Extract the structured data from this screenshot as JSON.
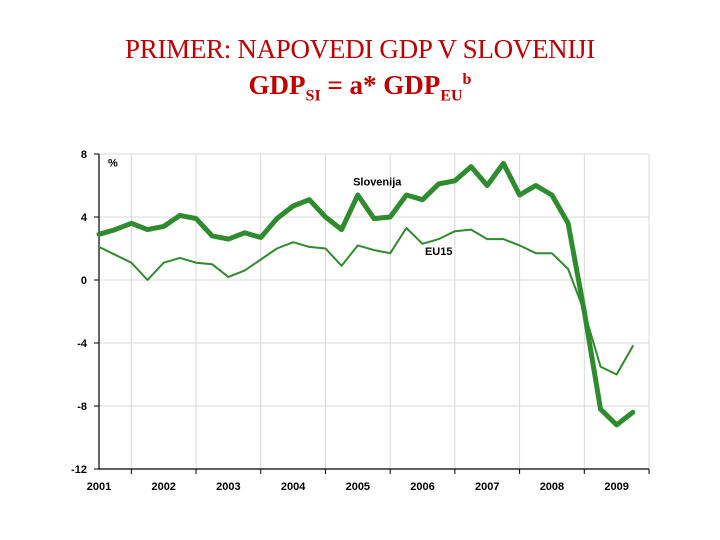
{
  "title": {
    "line1": "PRIMER: NAPOVEDI GDP V SLOVENIJI",
    "line2_main": "GDP",
    "line2_sub1": "SI",
    "line2_mid": " = a* GDP",
    "line2_sub2": "EU",
    "line2_sup": "b"
  },
  "chart_data": {
    "type": "line",
    "title": "",
    "xlabel": "",
    "ylabel": "%",
    "ylim": [
      -12,
      8
    ],
    "yticks": [
      8,
      4,
      0,
      -4,
      -8,
      -12
    ],
    "ytick_labels": [
      "8",
      "4",
      "0",
      "-4",
      "-8",
      "-12"
    ],
    "xlim": [
      2001,
      2009.5
    ],
    "categories": [
      "2001",
      "2002",
      "2003",
      "2004",
      "2005",
      "2006",
      "2007",
      "2008",
      "2009"
    ],
    "grid": true,
    "series": [
      {
        "name": "Slovenija",
        "color": "#2e8b2e",
        "width": "thick",
        "x": [
          2001.0,
          2001.25,
          2001.5,
          2001.75,
          2002.0,
          2002.25,
          2002.5,
          2002.75,
          2003.0,
          2003.25,
          2003.5,
          2003.75,
          2004.0,
          2004.25,
          2004.5,
          2004.75,
          2005.0,
          2005.25,
          2005.5,
          2005.75,
          2006.0,
          2006.25,
          2006.5,
          2006.75,
          2007.0,
          2007.25,
          2007.5,
          2007.75,
          2008.0,
          2008.25,
          2008.5,
          2008.75,
          2009.0,
          2009.25
        ],
        "values": [
          2.9,
          3.2,
          3.6,
          3.2,
          3.4,
          4.1,
          3.9,
          2.8,
          2.6,
          3.0,
          2.7,
          3.9,
          4.7,
          5.1,
          4.0,
          3.2,
          5.4,
          3.9,
          4.0,
          5.4,
          5.1,
          6.1,
          6.3,
          7.2,
          6.0,
          7.4,
          5.4,
          6.0,
          5.4,
          3.6,
          -2.0,
          -8.2,
          -9.2,
          -8.4
        ]
      },
      {
        "name": "EU15",
        "color": "#2e8b2e",
        "width": "thin",
        "x": [
          2001.0,
          2001.25,
          2001.5,
          2001.75,
          2002.0,
          2002.25,
          2002.5,
          2002.75,
          2003.0,
          2003.25,
          2003.5,
          2003.75,
          2004.0,
          2004.25,
          2004.5,
          2004.75,
          2005.0,
          2005.25,
          2005.5,
          2005.75,
          2006.0,
          2006.25,
          2006.5,
          2006.75,
          2007.0,
          2007.25,
          2007.5,
          2007.75,
          2008.0,
          2008.25,
          2008.5,
          2008.75,
          2009.0,
          2009.25
        ],
        "values": [
          2.1,
          1.6,
          1.1,
          0.0,
          1.1,
          1.4,
          1.1,
          1.0,
          0.2,
          0.6,
          1.3,
          2.0,
          2.4,
          2.1,
          2.0,
          0.9,
          2.2,
          1.9,
          1.7,
          3.3,
          2.3,
          2.6,
          3.1,
          3.2,
          2.6,
          2.6,
          2.2,
          1.7,
          1.7,
          0.7,
          -2.0,
          -5.5,
          -6.0,
          -4.2
        ]
      }
    ]
  }
}
